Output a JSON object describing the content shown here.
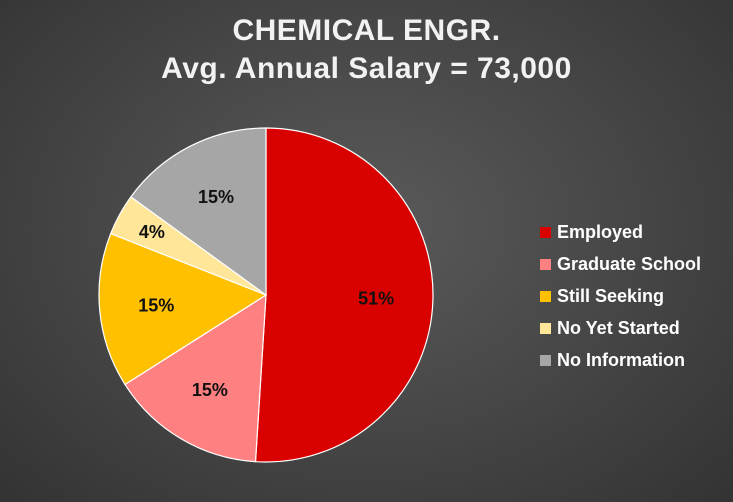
{
  "chart_data": {
    "type": "pie",
    "title": "CHEMICAL ENGR.",
    "subtitle": "Avg. Annual Salary = 73,000",
    "slices": [
      {
        "name": "Employed",
        "value": 51,
        "label": "51%",
        "color": "#d90000"
      },
      {
        "name": "Graduate School",
        "value": 15,
        "label": "15%",
        "color": "#ff8080"
      },
      {
        "name": "Still Seeking",
        "value": 15,
        "label": "15%",
        "color": "#ffc000"
      },
      {
        "name": "No Yet Started",
        "value": 4,
        "label": "4%",
        "color": "#ffe699"
      },
      {
        "name": "No Information",
        "value": 15,
        "label": "15%",
        "color": "#a6a6a6"
      }
    ],
    "legend_position": "right",
    "start_angle_deg": 0,
    "direction": "clockwise"
  }
}
